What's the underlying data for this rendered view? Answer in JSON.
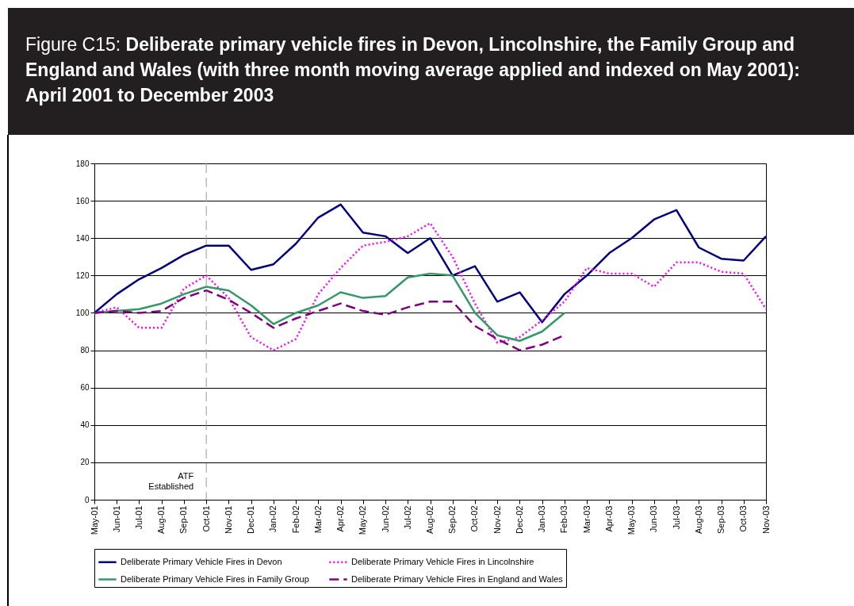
{
  "chart_data": {
    "type": "line",
    "title": "Figure C15: Deliberate primary vehicle fires in Devon, Lincolnshire, the Family Group and England and Wales (with three month moving average applied and indexed on May 2001): April 2001 to December 2003",
    "categories": [
      "May-01",
      "Jun-01",
      "Jul-01",
      "Aug-01",
      "Sep-01",
      "Oct-01",
      "Nov-01",
      "Dec-01",
      "Jan-02",
      "Feb-02",
      "Mar-02",
      "Apr-02",
      "May-02",
      "Jun-02",
      "Jul-02",
      "Aug-02",
      "Sep-02",
      "Oct-02",
      "Nov-02",
      "Dec-02",
      "Jan-03",
      "Feb-03",
      "Mar-03",
      "Apr-03",
      "May-03",
      "Jun-03",
      "Jul-03",
      "Aug-03",
      "Sep-03",
      "Oct-03",
      "Nov-03"
    ],
    "series": [
      {
        "name": "Deliberate Primary Vehicle Fires in Devon",
        "color": "#000080",
        "line_style": "solid",
        "values": [
          100,
          110,
          118,
          124,
          131,
          136,
          136,
          123,
          126,
          137,
          151,
          158,
          143,
          141,
          132,
          140,
          120,
          125,
          106,
          111,
          95,
          110,
          120,
          132,
          140,
          150,
          155,
          135,
          129,
          128,
          141
        ]
      },
      {
        "name": "Deliberate Primary Vehicle Fires in Lincolnshire",
        "color": "#ff00ff",
        "line_style": "dotted",
        "values": [
          100,
          103,
          92,
          92,
          113,
          120,
          108,
          87,
          80,
          86,
          110,
          124,
          136,
          138,
          141,
          148,
          130,
          105,
          84,
          87,
          96,
          106,
          124,
          121,
          121,
          114,
          127,
          127,
          122,
          121,
          102
        ]
      },
      {
        "name": "Deliberate Primary Vehicle Fires in Family Group",
        "color": "#339966",
        "line_style": "solid",
        "values": [
          100,
          101,
          102,
          105,
          110,
          114,
          112,
          104,
          94,
          100,
          104,
          111,
          108,
          109,
          119,
          121,
          120,
          100,
          88,
          85,
          90,
          100,
          null,
          null,
          null,
          null,
          null,
          null,
          null,
          null,
          null
        ]
      },
      {
        "name": "Deliberate Primary Vehicle Fires in England and Wales",
        "color": "#800080",
        "line_style": "dashed",
        "values": [
          100,
          101,
          100,
          101,
          108,
          112,
          107,
          100,
          92,
          97,
          101,
          105,
          101,
          99,
          103,
          106,
          106,
          93,
          86,
          80,
          83,
          88,
          null,
          null,
          null,
          null,
          null,
          null,
          null,
          null,
          null
        ]
      }
    ],
    "ylim": [
      0,
      180
    ],
    "yticks": [
      0,
      20,
      40,
      60,
      80,
      100,
      120,
      140,
      160,
      180
    ],
    "grid": "y",
    "legend": "bottom",
    "ref_lines": [
      {
        "axis": "x",
        "value": "Oct-01",
        "label": "ATF Established",
        "color": "#999999",
        "line_style": "dashed"
      }
    ]
  }
}
